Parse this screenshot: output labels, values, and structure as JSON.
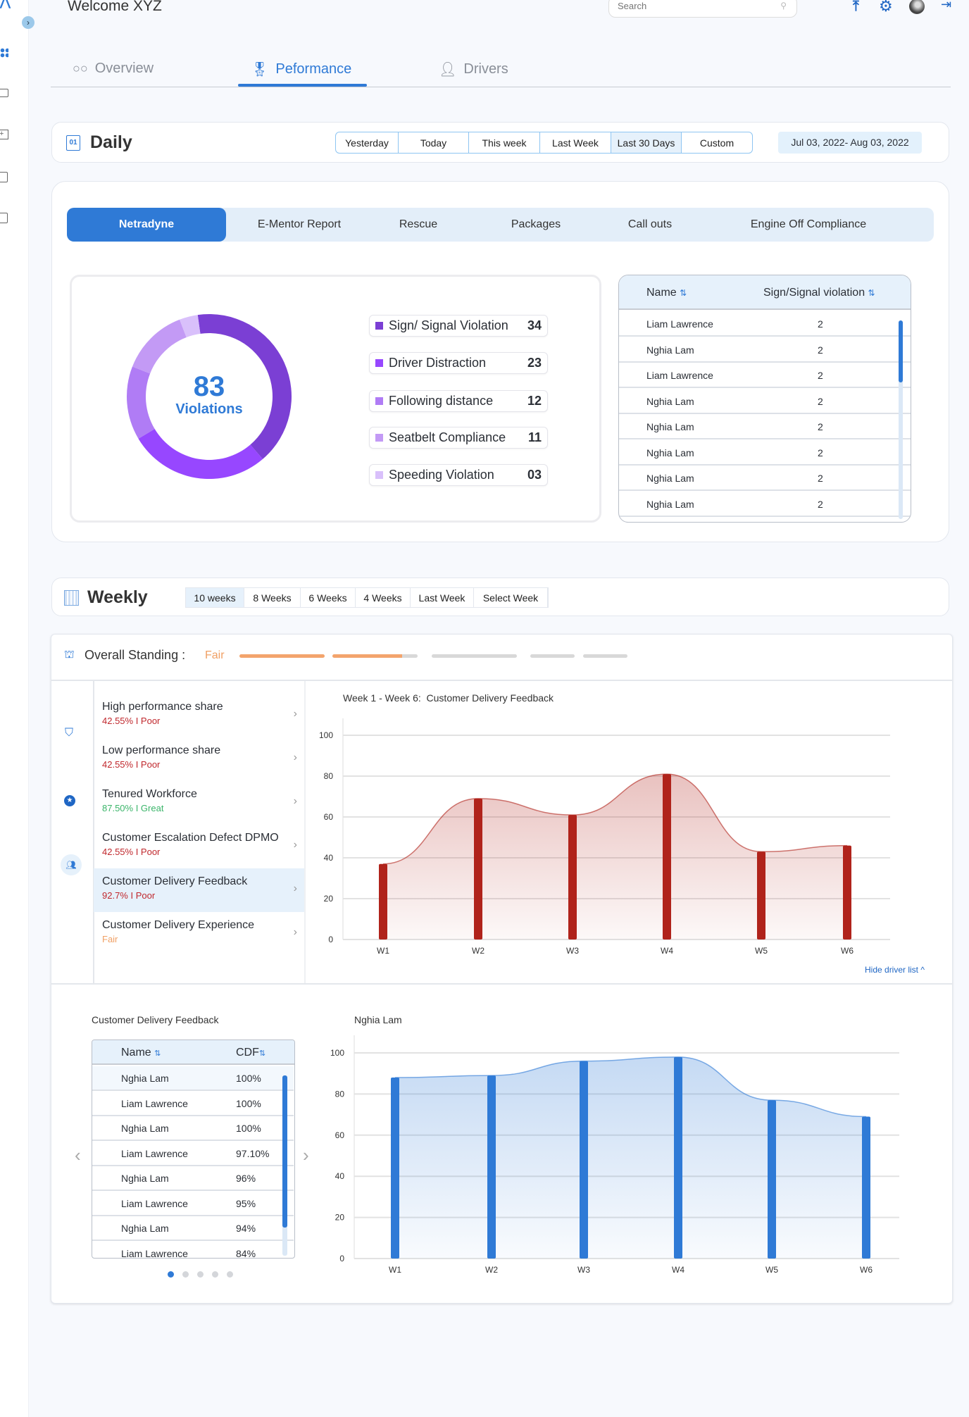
{
  "header": {
    "welcome": "Welcome XYZ",
    "search_placeholder": "Search",
    "icons": [
      "upload-icon",
      "gear-icon",
      "avatar",
      "logout-icon"
    ]
  },
  "tabs": [
    {
      "label": "Overview",
      "icon": "glasses-icon"
    },
    {
      "label": "Peformance",
      "icon": "medal-icon",
      "active": true
    },
    {
      "label": "Drivers",
      "icon": "person-icon"
    }
  ],
  "daily": {
    "title": "Daily",
    "calendar_day": "01",
    "ranges": [
      "Yesterday",
      "Today",
      "This week",
      "Last Week",
      "Last 30 Days",
      "Custom"
    ],
    "selected": "Last 30 Days",
    "date_range": "Jul 03, 2022- Aug 03, 2022"
  },
  "report_tabs": [
    "Netradyne",
    "E-Mentor Report",
    "Rescue",
    "Packages",
    "Call outs",
    "Engine Off Compliance"
  ],
  "violations": {
    "total": "83",
    "label": "Violations",
    "items": [
      {
        "label": "Sign/ Signal Violation",
        "value": "34",
        "color": "#7b3fd4"
      },
      {
        "label": "Driver Distraction",
        "value": "23",
        "color": "#9747ff"
      },
      {
        "label": "Following distance",
        "value": "12",
        "color": "#b07cf5"
      },
      {
        "label": "Seatbelt Compliance",
        "value": "11",
        "color": "#c39af5"
      },
      {
        "label": "Speeding Violation",
        "value": "03",
        "color": "#d9c0fb"
      }
    ]
  },
  "violation_table": {
    "headers": [
      "Name",
      "Sign/Signal violation"
    ],
    "rows": [
      [
        "Liam Lawrence",
        "2"
      ],
      [
        "Nghia Lam",
        "2"
      ],
      [
        "Liam Lawrence",
        "2"
      ],
      [
        "Nghia Lam",
        "2"
      ],
      [
        "Nghia Lam",
        "2"
      ],
      [
        "Nghia Lam",
        "2"
      ],
      [
        "Nghia Lam",
        "2"
      ],
      [
        "Nghia Lam",
        "2"
      ]
    ]
  },
  "weekly": {
    "title": "Weekly",
    "ranges": [
      "10 weeks",
      "8 Weeks",
      "6 Weeks",
      "4 Weeks",
      "Last Week",
      "Select Week"
    ],
    "selected": "10 weeks"
  },
  "standing": {
    "label": "Overall Standing :",
    "value": "Fair",
    "value_color": "#f0a064"
  },
  "metrics": [
    {
      "title": "High performance share",
      "sub": "42.55% I Poor",
      "color": "#c0282d"
    },
    {
      "title": "Low performance share",
      "sub": "42.55% I Poor",
      "color": "#c0282d"
    },
    {
      "title": "Tenured Workforce",
      "sub": "87.50% I Great",
      "color": "#3bb56a"
    },
    {
      "title": "Customer Escalation Defect DPMO",
      "sub": "42.55% I Poor",
      "color": "#c0282d"
    },
    {
      "title": "Customer Delivery Feedback",
      "sub": "92.7% I Poor",
      "color": "#c0282d",
      "active": true
    },
    {
      "title": "Customer Delivery Experience",
      "sub": "Fair",
      "color": "#f0a064"
    }
  ],
  "hide_driver_list": "Hide driver list ^",
  "cdf_table": {
    "title": "Customer Delivery Feedback",
    "headers": [
      "Name",
      "CDF"
    ],
    "rows": [
      [
        "Nghia Lam",
        "100%"
      ],
      [
        "Liam Lawrence",
        "100%"
      ],
      [
        "Nghia Lam",
        "100%"
      ],
      [
        "Liam Lawrence",
        "97.10%"
      ],
      [
        "Nghia Lam",
        "96%"
      ],
      [
        "Liam Lawrence",
        "95%"
      ],
      [
        "Nghia Lam",
        "94%"
      ],
      [
        "Liam Lawrence",
        "84%"
      ]
    ],
    "pages": 5,
    "current_page": 1
  },
  "chart_data": [
    {
      "type": "bar",
      "title": "Week 1 - Week 6:  Customer Delivery Feedback",
      "categories": [
        "W1",
        "W2",
        "W3",
        "W4",
        "W5",
        "W6"
      ],
      "values": [
        37,
        69,
        61,
        81,
        43,
        46
      ],
      "yticks": [
        0,
        20,
        40,
        60,
        80,
        100
      ],
      "ylim": [
        0,
        100
      ],
      "color": "#b0231b",
      "area": true,
      "grid": true
    },
    {
      "type": "bar",
      "title": "Nghia Lam",
      "categories": [
        "W1",
        "W2",
        "W3",
        "W4",
        "W5",
        "W6"
      ],
      "values": [
        88,
        89,
        96,
        98,
        77,
        69
      ],
      "yticks": [
        0,
        20,
        40,
        60,
        80,
        100
      ],
      "ylim": [
        0,
        100
      ],
      "color": "#2f7ad6",
      "area": true,
      "grid": true
    }
  ]
}
